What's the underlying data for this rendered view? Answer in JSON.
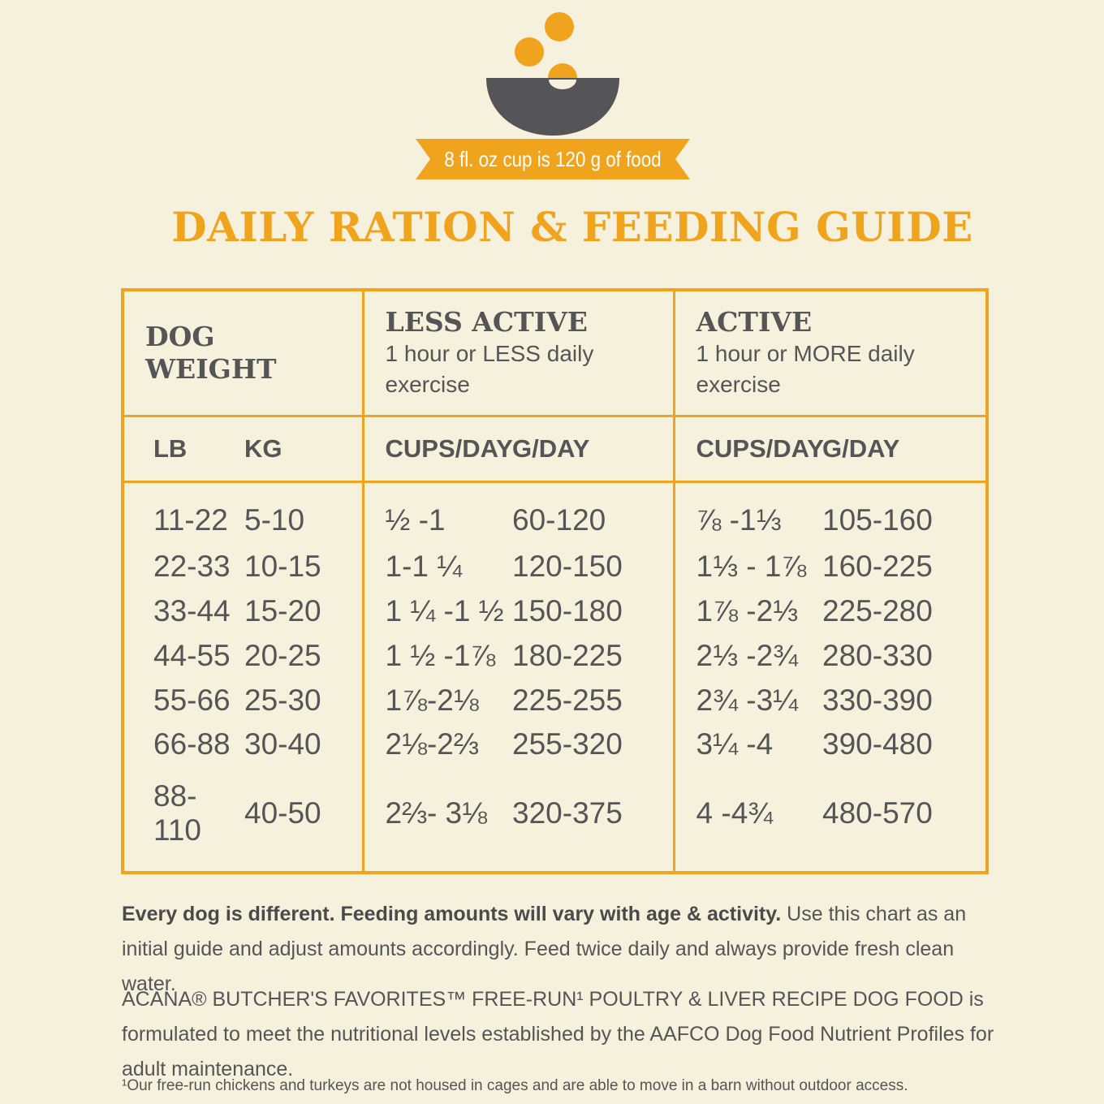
{
  "header": {
    "banner_text": "8 fl. oz cup is 120 g of food",
    "title": "DAILY RATION & FEEDING GUIDE",
    "icon": "bowl-with-food-icon",
    "colors": {
      "accent": "#f0a41e",
      "bowl": "#555557",
      "background": "#f5f1dd"
    }
  },
  "table": {
    "groups": [
      {
        "title_line1": "DOG",
        "title_line2": "WEIGHT",
        "subtitle": ""
      },
      {
        "title_line1": "LESS ACTIVE",
        "title_line2": "",
        "subtitle": "1 hour or LESS daily exercise"
      },
      {
        "title_line1": "ACTIVE",
        "title_line2": "",
        "subtitle": "1 hour or MORE daily exercise"
      }
    ],
    "columns": [
      "LB",
      "KG",
      "CUPS/DAY",
      "G/DAY",
      "CUPS/DAY",
      "G/DAY"
    ],
    "rows": [
      [
        "11-22",
        "5-10",
        "½ -1",
        "60-120",
        "⅞ -1⅓",
        "105-160"
      ],
      [
        "22-33",
        "10-15",
        "1-1 ¼",
        "120-150",
        "1⅓ - 1⅞",
        "160-225"
      ],
      [
        "33-44",
        "15-20",
        "1 ¼ -1 ½",
        "150-180",
        "1⅞ -2⅓",
        "225-280"
      ],
      [
        "44-55",
        "20-25",
        "1 ½ -1⅞",
        "180-225",
        "2⅓ -2¾",
        "280-330"
      ],
      [
        "55-66",
        "25-30",
        "1⅞-2⅛",
        "225-255",
        "2¾ -3¼",
        "330-390"
      ],
      [
        "66-88",
        "30-40",
        "2⅛-2⅔",
        "255-320",
        "3¼ -4",
        "390-480"
      ],
      [
        "88-110",
        "40-50",
        "2⅔- 3⅛",
        "320-375",
        "4 -4¾",
        "480-570"
      ]
    ]
  },
  "notes": {
    "p1_bold": "Every dog is different. Feeding amounts will vary with age & activity.",
    "p1_rest": " Use this chart as an initial guide and adjust amounts accordingly. Feed twice daily and always provide fresh clean water.",
    "p2": "ACANA® BUTCHER'S FAVORITES™ FREE-RUN¹ POULTRY & LIVER RECIPE DOG FOOD is formulated to meet the nutritional levels established by the AAFCO Dog Food Nutrient Profiles for adult maintenance.",
    "footnote": "¹Our free-run chickens and turkeys are not housed in cages and are able to move in a barn without outdoor access."
  }
}
